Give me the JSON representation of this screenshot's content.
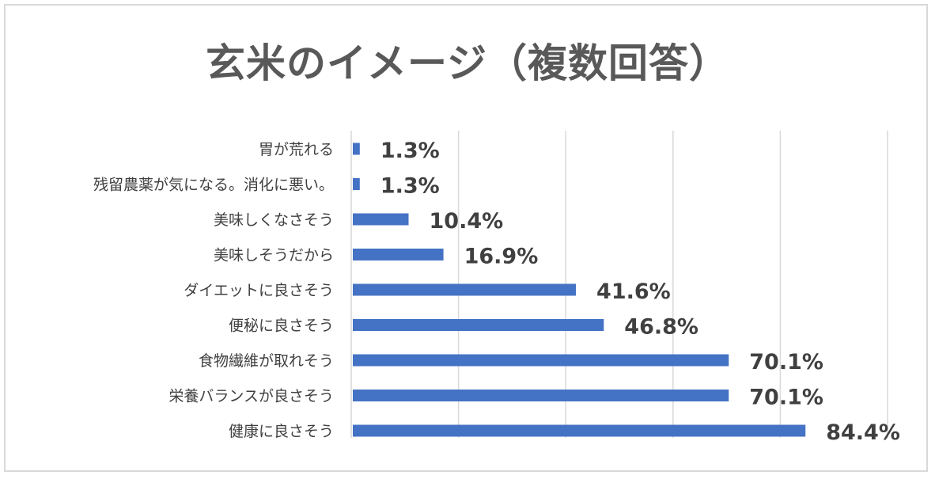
{
  "chart_data": {
    "type": "bar",
    "orientation": "horizontal",
    "title": "玄米のイメージ（複数回答）",
    "categories": [
      "胃が荒れる",
      "残留農薬が気になる。消化に悪い。",
      "美味しくなさそう",
      "美味しそうだから",
      "ダイエットに良さそう",
      "便秘に良さそう",
      "食物繊維が取れそう",
      "栄養バランスが良さそう",
      "健康に良さそう"
    ],
    "values": [
      1.3,
      1.3,
      10.4,
      16.9,
      41.6,
      46.8,
      70.1,
      70.1,
      84.4
    ],
    "value_labels": [
      "1.3%",
      "1.3%",
      "10.4%",
      "16.9%",
      "41.6%",
      "46.8%",
      "70.1%",
      "70.1%",
      "84.4%"
    ],
    "xlim": [
      0,
      100
    ],
    "grid": true,
    "legend": "none",
    "bar_color": "#4472c4"
  }
}
